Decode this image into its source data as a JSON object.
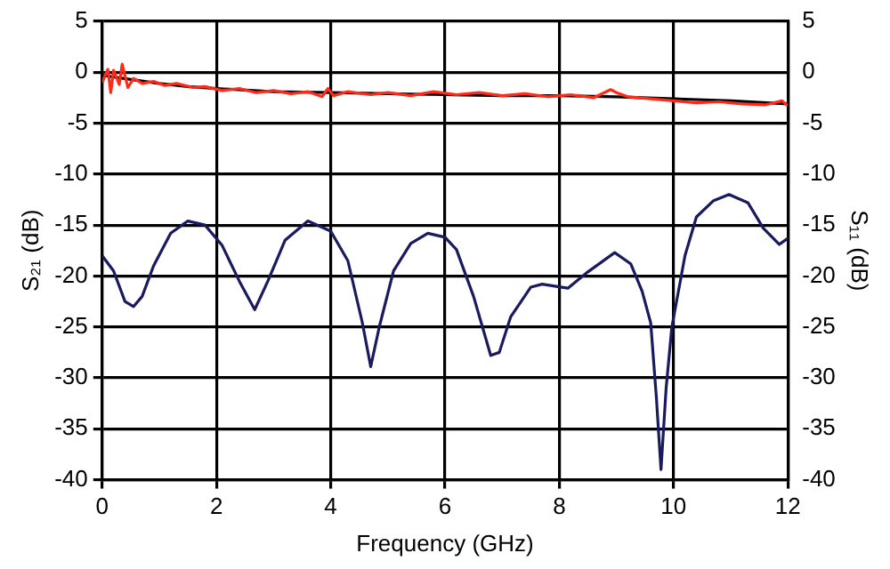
{
  "chart_data": {
    "type": "line",
    "xlabel": "Frequency (GHz)",
    "ylabel": "S₂₁ (dB)",
    "y2label": "S₁₁ (dB)",
    "xlim": [
      0,
      12
    ],
    "xticks": [
      0,
      2,
      4,
      6,
      8,
      10,
      12
    ],
    "ylim": [
      -40,
      5
    ],
    "yticks": [
      -40,
      -35,
      -30,
      -25,
      -20,
      -15,
      -10,
      -5,
      0,
      5
    ],
    "y2lim": [
      -40,
      5
    ],
    "y2ticks": [
      -40,
      -35,
      -30,
      -25,
      -20,
      -15,
      -10,
      -5,
      0,
      5
    ],
    "grid": true,
    "legend": false,
    "marker": "none",
    "line_style": "solid",
    "series": [
      {
        "color": "#ff2a1a",
        "x": [
          0,
          0.1,
          0.15,
          0.2,
          0.3,
          0.35,
          0.45,
          0.55,
          0.7,
          0.9,
          1.1,
          1.3,
          1.6,
          1.8,
          2.1,
          2.4,
          2.7,
          3.0,
          3.3,
          3.6,
          3.85,
          3.95,
          4.05,
          4.3,
          4.7,
          5.0,
          5.4,
          5.8,
          6.2,
          6.6,
          7.0,
          7.4,
          7.8,
          8.2,
          8.6,
          8.9,
          9.0,
          9.2,
          9.6,
          10.0,
          10.4,
          10.8,
          11.2,
          11.6,
          11.9,
          12
        ],
        "values": [
          -1.0,
          0.3,
          -2.0,
          0.2,
          -1.2,
          0.8,
          -1.5,
          -0.6,
          -1.1,
          -0.9,
          -1.3,
          -1.1,
          -1.5,
          -1.4,
          -1.8,
          -1.6,
          -2.0,
          -1.8,
          -2.1,
          -1.9,
          -2.4,
          -1.6,
          -2.3,
          -1.9,
          -2.2,
          -2.0,
          -2.3,
          -1.9,
          -2.2,
          -2.0,
          -2.3,
          -2.1,
          -2.4,
          -2.2,
          -2.5,
          -1.7,
          -2.0,
          -2.4,
          -2.6,
          -2.8,
          -3.0,
          -2.9,
          -3.1,
          -3.2,
          -2.8,
          -3.3
        ]
      },
      {
        "color": "#000000",
        "x": [
          0,
          0.5,
          1,
          1.5,
          2,
          3,
          4,
          5,
          6,
          7,
          8,
          9,
          10,
          11,
          12
        ],
        "values": [
          -0.3,
          -0.7,
          -1.1,
          -1.4,
          -1.6,
          -1.9,
          -2.0,
          -2.1,
          -2.2,
          -2.3,
          -2.3,
          -2.4,
          -2.6,
          -2.8,
          -3.1
        ]
      },
      {
        "color": "#1a1a5e",
        "axis": "y2",
        "x": [
          0,
          0.2,
          0.4,
          0.55,
          0.7,
          0.9,
          1.2,
          1.5,
          1.8,
          2.1,
          2.4,
          2.67,
          2.9,
          3.2,
          3.6,
          4.0,
          4.3,
          4.55,
          4.7,
          4.85,
          5.1,
          5.4,
          5.7,
          6.0,
          6.2,
          6.5,
          6.8,
          6.95,
          7.15,
          7.5,
          7.7,
          8.15,
          8.5,
          8.97,
          9.25,
          9.45,
          9.6,
          9.7,
          9.78,
          9.87,
          9.97,
          10.2,
          10.4,
          10.7,
          10.97,
          11.3,
          11.57,
          11.85,
          12
        ],
        "values": [
          -18,
          -19.5,
          -22.5,
          -23,
          -22,
          -19,
          -15.8,
          -14.6,
          -15,
          -17,
          -20.5,
          -23.3,
          -20.5,
          -16.5,
          -14.6,
          -15.6,
          -18.5,
          -24.5,
          -28.9,
          -25,
          -19.5,
          -16.8,
          -15.8,
          -16.2,
          -17.4,
          -22,
          -27.8,
          -27.5,
          -24,
          -21.1,
          -20.8,
          -21.2,
          -19.6,
          -17.7,
          -18.8,
          -21.5,
          -24.6,
          -32,
          -39,
          -31,
          -25,
          -18,
          -14.2,
          -12.6,
          -12,
          -12.8,
          -15.3,
          -16.9,
          -16.3
        ]
      }
    ]
  }
}
